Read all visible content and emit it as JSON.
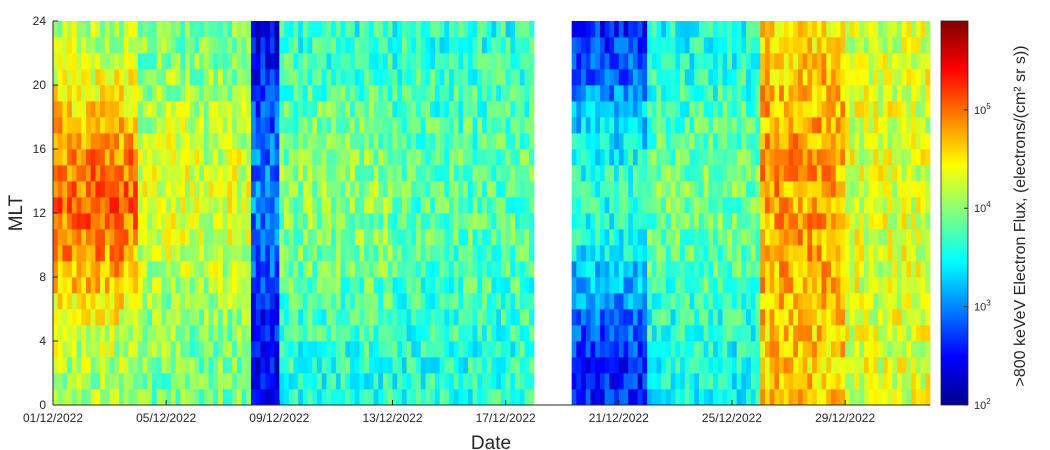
{
  "chart_data": {
    "type": "heatmap",
    "title": "",
    "xlabel": "Date",
    "ylabel": "MLT",
    "colorbar_label": ">800 keVeV Electron Flux, (electrons/(cm² sr s))",
    "colorscale": "jet",
    "color_scale_type": "log",
    "clim": [
      100,
      800000
    ],
    "colorbar_ticks": [
      {
        "base": "10",
        "exp": "2",
        "value": 100
      },
      {
        "base": "10",
        "exp": "3",
        "value": 1000
      },
      {
        "base": "10",
        "exp": "4",
        "value": 10000
      },
      {
        "base": "10",
        "exp": "5",
        "value": 100000
      }
    ],
    "xlim": [
      "2022-12-01",
      "2023-01-01"
    ],
    "x_ticks": [
      "01/12/2022",
      "05/12/2022",
      "09/12/2022",
      "13/12/2022",
      "17/12/2022",
      "21/12/2022",
      "25/12/2022",
      "29/12/2022"
    ],
    "ylim": [
      0,
      24
    ],
    "y_ticks": [
      "0",
      "4",
      "8",
      "12",
      "16",
      "20",
      "24"
    ],
    "mlt_bins": 24,
    "data_gap": [
      "2022-12-18",
      "2022-12-19"
    ],
    "series": [
      {
        "period": "01/12/2022 – 03/12/2022",
        "log10_flux_day": 5.0,
        "log10_flux_night": 4.1
      },
      {
        "period": "04/12/2022 – 07/12/2022",
        "log10_flux_day": 4.3,
        "log10_flux_night": 3.9
      },
      {
        "period": "08/12/2022",
        "log10_flux_day": 3.0,
        "log10_flux_night": 2.4
      },
      {
        "period": "09/12/2022 – 12/12/2022",
        "log10_flux_day": 4.0,
        "log10_flux_night": 3.6
      },
      {
        "period": "13/12/2022 – 17/12/2022",
        "log10_flux_day": 3.8,
        "log10_flux_night": 3.6
      },
      {
        "period": "19/12/2022 – 21/12/2022",
        "log10_flux_day": 3.6,
        "log10_flux_night": 2.6
      },
      {
        "period": "22/12/2022 – 25/12/2022",
        "log10_flux_day": 3.9,
        "log10_flux_night": 3.5
      },
      {
        "period": "25/12/2022 – 28/12/2022",
        "log10_flux_day": 4.8,
        "log10_flux_night": 4.6
      },
      {
        "period": "28/12/2022 – 31/12/2022",
        "log10_flux_day": 4.3,
        "log10_flux_night": 4.3
      }
    ]
  }
}
